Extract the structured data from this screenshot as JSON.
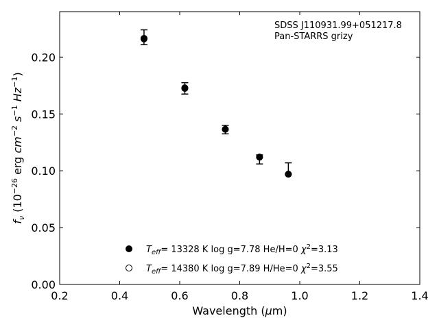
{
  "chart_data": {
    "type": "scatter",
    "xlim": [
      0.2,
      1.4
    ],
    "ylim": [
      0.0,
      0.24
    ],
    "xticks": [
      "0.2",
      "0.4",
      "0.6",
      "0.8",
      "1.0",
      "1.2",
      "1.4"
    ],
    "yticks": [
      "0.00",
      "0.05",
      "0.10",
      "0.15",
      "0.20"
    ],
    "xlabel": "Wavelength (μm)",
    "ylabel": "f_ν (10^-26 erg cm^-2 s^-1 Hz^-1)",
    "annotation": [
      "SDSS J110931.99+051217.8",
      "Pan-STARRS grizy"
    ],
    "grid": false,
    "legend_position": "bottom-center",
    "observed": {
      "x": [
        0.481,
        0.617,
        0.752,
        0.866,
        0.962
      ],
      "y": [
        0.217,
        0.1725,
        0.1365,
        0.112,
        0.099
      ],
      "yerr_low": [
        0.006,
        0.005,
        0.004,
        0.006,
        0.002
      ],
      "yerr_high": [
        0.007,
        0.005,
        0.0035,
        0.002,
        0.008
      ]
    },
    "series": [
      {
        "name": "T_eff= 13328 K  log g=7.78  He/H=0  χ²=3.13",
        "marker": "filled-circle",
        "color": "#000000",
        "x": [
          0.481,
          0.617,
          0.752,
          0.866,
          0.962
        ],
        "y": [
          0.2165,
          0.173,
          0.1365,
          0.112,
          0.097
        ]
      },
      {
        "name": "T_eff= 14380 K  log g=7.89  H/He=0  χ²=3.55",
        "marker": "open-circle",
        "color": "#000000",
        "x": [
          0.481,
          0.617,
          0.752,
          0.866,
          0.962
        ],
        "y": [
          0.216,
          0.1725,
          0.1365,
          0.112,
          0.097
        ]
      }
    ]
  }
}
